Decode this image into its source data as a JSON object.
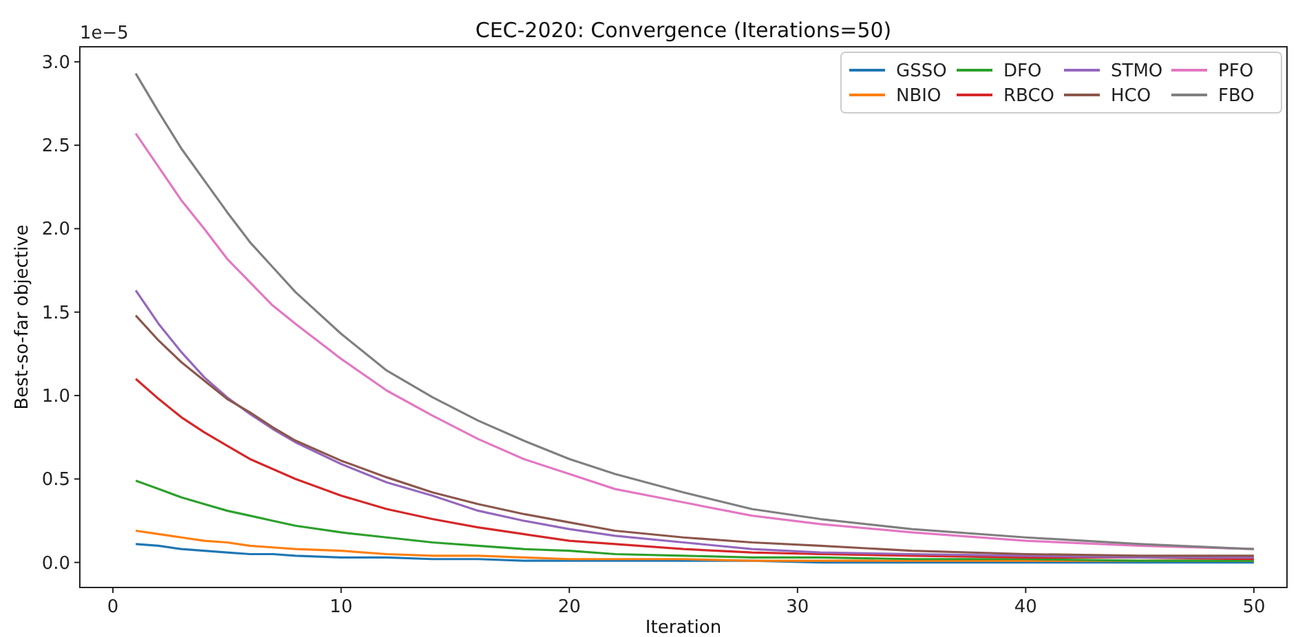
{
  "chart_data": {
    "type": "line",
    "title": "CEC-2020: Convergence (Iterations=50)",
    "xlabel": "Iteration",
    "ylabel": "Best-so-far objective",
    "annotations": [
      "1e−5"
    ],
    "x": [
      1,
      2,
      3,
      4,
      5,
      6,
      7,
      8,
      10,
      12,
      14,
      16,
      18,
      20,
      22,
      25,
      28,
      31,
      35,
      40,
      45,
      50
    ],
    "xlim": [
      -1.45,
      51.45
    ],
    "xticks": [
      0,
      10,
      20,
      30,
      40,
      50
    ],
    "ylim": [
      -0.15,
      3.09
    ],
    "yticks": [
      {
        "value": 0,
        "label": "0.0"
      },
      0.5,
      {
        "value": 1,
        "label": "1.0"
      },
      1.5,
      {
        "value": 2,
        "label": "2.0"
      },
      2.5,
      {
        "value": 3,
        "label": "3.0"
      }
    ],
    "legend": "top right",
    "grid": false,
    "series": [
      {
        "name": "GSSO",
        "color": "#1f77b4",
        "values": [
          0.11,
          0.1,
          0.08,
          0.07,
          0.06,
          0.05,
          0.05,
          0.04,
          0.03,
          0.03,
          0.02,
          0.02,
          0.01,
          0.01,
          0.01,
          0.01,
          0.01,
          0,
          0,
          0,
          0,
          0
        ]
      },
      {
        "name": "NBIO",
        "color": "#ff7f0e",
        "values": [
          0.19,
          0.17,
          0.15,
          0.13,
          0.12,
          0.1,
          0.09,
          0.08,
          0.07,
          0.05,
          0.04,
          0.04,
          0.03,
          0.02,
          0.02,
          0.02,
          0.01,
          0.01,
          0.01,
          0.01,
          0.01,
          0.01
        ]
      },
      {
        "name": "DFO",
        "color": "#2ca02c",
        "values": [
          0.49,
          0.44,
          0.39,
          0.35,
          0.31,
          0.28,
          0.25,
          0.22,
          0.18,
          0.15,
          0.12,
          0.1,
          0.08,
          0.07,
          0.05,
          0.04,
          0.03,
          0.03,
          0.02,
          0.02,
          0.01,
          0.01
        ]
      },
      {
        "name": "RBCO",
        "color": "#d62728",
        "values": [
          1.1,
          0.98,
          0.87,
          0.78,
          0.7,
          0.62,
          0.56,
          0.5,
          0.4,
          0.32,
          0.26,
          0.21,
          0.17,
          0.13,
          0.11,
          0.08,
          0.06,
          0.05,
          0.04,
          0.03,
          0.03,
          0.02
        ]
      },
      {
        "name": "STMO",
        "color": "#9467bd",
        "values": [
          1.63,
          1.43,
          1.26,
          1.11,
          0.99,
          0.89,
          0.8,
          0.72,
          0.59,
          0.48,
          0.4,
          0.31,
          0.25,
          0.2,
          0.16,
          0.12,
          0.08,
          0.06,
          0.05,
          0.04,
          0.03,
          0.03
        ]
      },
      {
        "name": "HCO",
        "color": "#8c564b",
        "values": [
          1.48,
          1.33,
          1.2,
          1.09,
          0.98,
          0.9,
          0.81,
          0.73,
          0.61,
          0.51,
          0.42,
          0.35,
          0.29,
          0.24,
          0.19,
          0.15,
          0.12,
          0.1,
          0.07,
          0.05,
          0.04,
          0.04
        ]
      },
      {
        "name": "PFO",
        "color": "#e377c2",
        "values": [
          2.57,
          2.37,
          2.17,
          2,
          1.82,
          1.68,
          1.54,
          1.43,
          1.22,
          1.03,
          0.88,
          0.74,
          0.62,
          0.53,
          0.44,
          0.36,
          0.28,
          0.23,
          0.18,
          0.13,
          0.1,
          0.08
        ]
      },
      {
        "name": "FBO",
        "color": "#7f7f7f",
        "values": [
          2.93,
          2.7,
          2.48,
          2.29,
          2.1,
          1.92,
          1.77,
          1.62,
          1.37,
          1.15,
          0.99,
          0.85,
          0.73,
          0.62,
          0.53,
          0.42,
          0.32,
          0.26,
          0.2,
          0.15,
          0.11,
          0.08
        ]
      }
    ]
  }
}
